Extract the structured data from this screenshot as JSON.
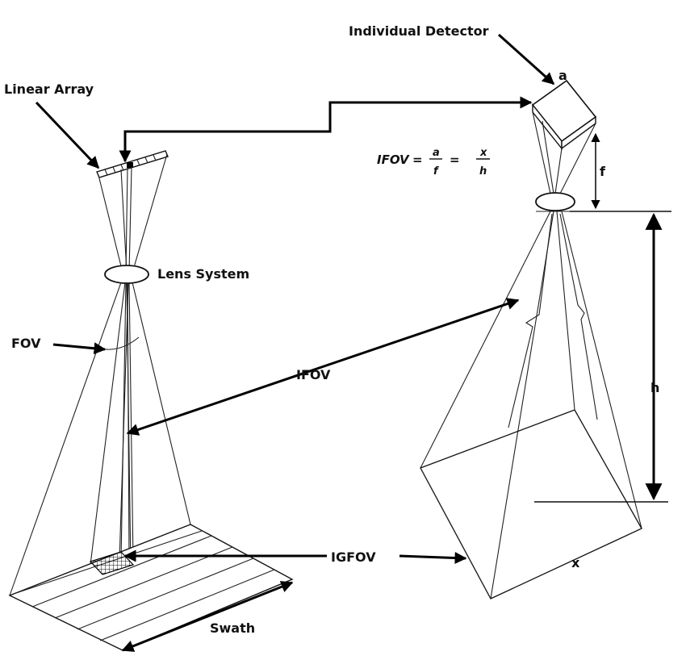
{
  "labels": {
    "linear_array": "Linear Array",
    "individual_detector": "Individual Detector",
    "detector_edge": "a",
    "focal_length": "f",
    "lens_system": "Lens System",
    "fov": "FOV",
    "ifov": "IFOV",
    "igfov": "IGFOV",
    "swath": "Swath",
    "height": "h",
    "ground_size": "x"
  },
  "equation": {
    "lhs": "IFOV",
    "eq1": "=",
    "frac1_num": "a",
    "frac1_den": "f",
    "eq2": "=",
    "frac2_num": "x",
    "frac2_den": "h"
  }
}
